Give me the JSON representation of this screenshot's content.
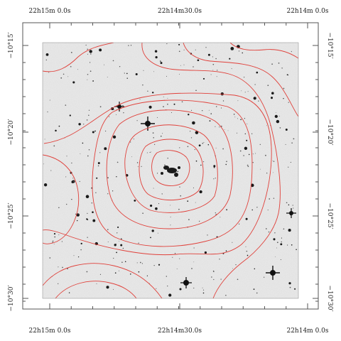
{
  "figure": {
    "ra_labels": [
      "22h15m 0.0s",
      "22h14m30.0s",
      "22h14m 0.0s"
    ],
    "dec_labels": [
      "−10°15′",
      "−10°20′",
      "−10°25′",
      "−10°30′"
    ],
    "colors": {
      "background": "#ffffff",
      "sky": "#ececec",
      "contour": "#e0403a",
      "frame": "#555555",
      "stars": "#1a1a1a"
    }
  }
}
